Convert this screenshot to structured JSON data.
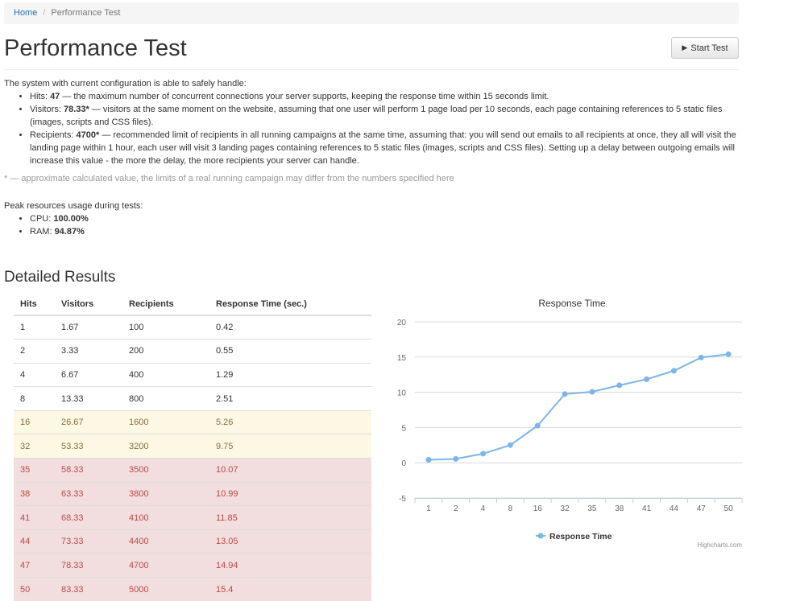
{
  "breadcrumb": {
    "home": "Home",
    "separator": "/",
    "current": "Performance Test"
  },
  "page_title": "Performance Test",
  "start_button": {
    "label": "Start Test",
    "icon": "play-icon"
  },
  "summary": {
    "intro": "The system with current configuration is able to safely handle:",
    "hits": {
      "label": "Hits:",
      "value": "47",
      "text": "— the maximum number of concurrent connections your server supports, keeping the response time within 15 seconds limit."
    },
    "visitors": {
      "label": "Visitors:",
      "value": "78.33*",
      "text": "— visitors at the same moment on the website, assuming that one user will perform 1 page load per 10 seconds, each page containing references to 5 static files (images, scripts and CSS files)."
    },
    "recipients": {
      "label": "Recipients:",
      "value": "4700*",
      "text": "— recommended limit of recipients in all running campaigns at the same time, assuming that: you will send out emails to all recipients at once, they all will visit the landing page within 1 hour, each user will visit 3 landing pages containing references to 5 static files (images, scripts and CSS files). Setting up a delay between outgoing emails will increase this value - the more the delay, the more recipients your server can handle."
    },
    "note": "* — approximate calculated value, the limits of a real running campaign may differ from the numbers specified here"
  },
  "peak": {
    "intro": "Peak resources usage during tests:",
    "cpu_label": "CPU:",
    "cpu_value": "100.00%",
    "ram_label": "RAM:",
    "ram_value": "94.87%"
  },
  "detailed_title": "Detailed Results",
  "table": {
    "headers": [
      "Hits",
      "Visitors",
      "Recipients",
      "Response Time (sec.)"
    ],
    "rows": [
      {
        "cells": [
          "1",
          "1.67",
          "100",
          "0.42"
        ],
        "status": "normal"
      },
      {
        "cells": [
          "2",
          "3.33",
          "200",
          "0.55"
        ],
        "status": "normal"
      },
      {
        "cells": [
          "4",
          "6.67",
          "400",
          "1.29"
        ],
        "status": "normal"
      },
      {
        "cells": [
          "8",
          "13.33",
          "800",
          "2.51"
        ],
        "status": "normal"
      },
      {
        "cells": [
          "16",
          "26.67",
          "1600",
          "5.26"
        ],
        "status": "warning"
      },
      {
        "cells": [
          "32",
          "53.33",
          "3200",
          "9.75"
        ],
        "status": "warning"
      },
      {
        "cells": [
          "35",
          "58.33",
          "3500",
          "10.07"
        ],
        "status": "error"
      },
      {
        "cells": [
          "38",
          "63.33",
          "3800",
          "10.99"
        ],
        "status": "error"
      },
      {
        "cells": [
          "41",
          "68.33",
          "4100",
          "11.85"
        ],
        "status": "error"
      },
      {
        "cells": [
          "44",
          "73.33",
          "4400",
          "13.05"
        ],
        "status": "error"
      },
      {
        "cells": [
          "47",
          "78.33",
          "4700",
          "14.94"
        ],
        "status": "error"
      },
      {
        "cells": [
          "50",
          "83.33",
          "5000",
          "15.4"
        ],
        "status": "error"
      }
    ]
  },
  "chart_data": {
    "type": "line",
    "title": "Response Time",
    "categories": [
      "1",
      "2",
      "4",
      "8",
      "16",
      "32",
      "35",
      "38",
      "41",
      "44",
      "47",
      "50"
    ],
    "series": [
      {
        "name": "Response Time",
        "values": [
          0.42,
          0.55,
          1.29,
          2.51,
          5.26,
          9.75,
          10.07,
          10.99,
          11.85,
          13.05,
          14.94,
          15.4
        ]
      }
    ],
    "ylim": [
      -5,
      20
    ],
    "yticks": [
      -5,
      0,
      5,
      10,
      15,
      20
    ],
    "grid": true,
    "legend": "bottom-center",
    "credit": "Highcharts.com",
    "color": "#7cb5ec"
  },
  "colors": {
    "link": "#2a6ebb",
    "warning_bg": "#fcf8e3",
    "error_bg": "#f2dede",
    "series": "#7cb5ec"
  }
}
